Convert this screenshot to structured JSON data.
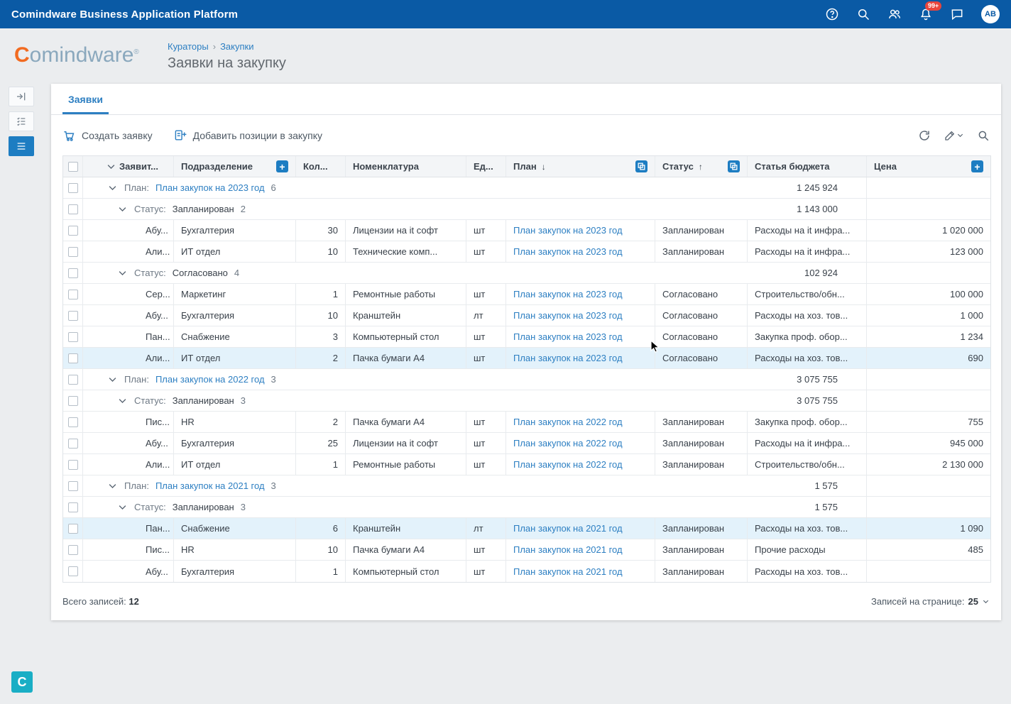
{
  "topbar": {
    "title": "Comindware Business Application Platform",
    "notification_count": "99+",
    "avatar_initials": "AB"
  },
  "header": {
    "logo_first": "C",
    "logo_rest": "omindware",
    "logo_mark": "®",
    "breadcrumb_1": "Кураторы",
    "breadcrumb_sep": "›",
    "breadcrumb_2": "Закупки",
    "page_title": "Заявки на закупку"
  },
  "sidebar": {
    "logo_letter": "C"
  },
  "tabs": {
    "requests": "Заявки"
  },
  "toolbar": {
    "create_request": "Создать заявку",
    "add_positions": "Добавить позиции в закупку"
  },
  "icons": {
    "plus": "+",
    "sort_desc": "↓",
    "sort_asc": "↑"
  },
  "table": {
    "columns": {
      "requester": "Заявит...",
      "department": "Подразделение",
      "qty": "Кол...",
      "nomenclature": "Номенклатура",
      "unit": "Ед...",
      "plan": "План",
      "status": "Статус",
      "budget": "Статья бюджета",
      "price": "Цена"
    },
    "rows": [
      {
        "type": "group",
        "level": 1,
        "label": "План:",
        "value": "План закупок на 2023 год",
        "link": true,
        "count": "6",
        "total": "1 245 924"
      },
      {
        "type": "group",
        "level": 2,
        "label": "Статус:",
        "value": "Запланирован",
        "link": false,
        "count": "2",
        "total": "1 143 000"
      },
      {
        "type": "data",
        "requester": "Абу...",
        "department": "Бухгалтерия",
        "qty": "30",
        "item": "Лицензии на it софт",
        "unit": "шт",
        "plan": "План закупок на 2023 год",
        "status": "Запланирован",
        "budget": "Расходы на it инфра...",
        "price": "1 020 000",
        "highlighted": false
      },
      {
        "type": "data",
        "requester": "Али...",
        "department": "ИТ отдел",
        "qty": "10",
        "item": "Технические комп...",
        "unit": "шт",
        "plan": "План закупок на 2023 год",
        "status": "Запланирован",
        "budget": "Расходы на it инфра...",
        "price": "123 000",
        "highlighted": false
      },
      {
        "type": "group",
        "level": 2,
        "label": "Статус:",
        "value": "Согласовано",
        "link": false,
        "count": "4",
        "total": "102 924"
      },
      {
        "type": "data",
        "requester": "Сер...",
        "department": "Маркетинг",
        "qty": "1",
        "item": "Ремонтные работы",
        "unit": "шт",
        "plan": "План закупок на 2023 год",
        "status": "Согласовано",
        "budget": "Строительство/обн...",
        "price": "100 000",
        "highlighted": false
      },
      {
        "type": "data",
        "requester": "Абу...",
        "department": "Бухгалтерия",
        "qty": "10",
        "item": "Кранштейн",
        "unit": "лт",
        "plan": "План закупок на 2023 год",
        "status": "Согласовано",
        "budget": "Расходы на хоз. тов...",
        "price": "1 000",
        "highlighted": false
      },
      {
        "type": "data",
        "requester": "Пан...",
        "department": "Снабжение",
        "qty": "3",
        "item": "Компьютерный стол",
        "unit": "шт",
        "plan": "План закупок на 2023 год",
        "status": "Согласовано",
        "budget": "Закупка проф. обор...",
        "price": "1 234",
        "highlighted": false
      },
      {
        "type": "data",
        "requester": "Али...",
        "department": "ИТ отдел",
        "qty": "2",
        "item": "Пачка бумаги А4",
        "unit": "шт",
        "plan": "План закупок на 2023 год",
        "status": "Согласовано",
        "budget": "Расходы на хоз. тов...",
        "price": "690",
        "highlighted": true
      },
      {
        "type": "group",
        "level": 1,
        "label": "План:",
        "value": "План закупок на 2022 год",
        "link": true,
        "count": "3",
        "total": "3 075 755"
      },
      {
        "type": "group",
        "level": 2,
        "label": "Статус:",
        "value": "Запланирован",
        "link": false,
        "count": "3",
        "total": "3 075 755"
      },
      {
        "type": "data",
        "requester": "Пис...",
        "department": "HR",
        "qty": "2",
        "item": "Пачка бумаги А4",
        "unit": "шт",
        "plan": "План закупок на 2022 год",
        "status": "Запланирован",
        "budget": "Закупка проф. обор...",
        "price": "755",
        "highlighted": false
      },
      {
        "type": "data",
        "requester": "Абу...",
        "department": "Бухгалтерия",
        "qty": "25",
        "item": "Лицензии на it софт",
        "unit": "шт",
        "plan": "План закупок на 2022 год",
        "status": "Запланирован",
        "budget": "Расходы на it инфра...",
        "price": "945 000",
        "highlighted": false
      },
      {
        "type": "data",
        "requester": "Али...",
        "department": "ИТ отдел",
        "qty": "1",
        "item": "Ремонтные работы",
        "unit": "шт",
        "plan": "План закупок на 2022 год",
        "status": "Запланирован",
        "budget": "Строительство/обн...",
        "price": "2 130 000",
        "highlighted": false
      },
      {
        "type": "group",
        "level": 1,
        "label": "План:",
        "value": "План закупок на 2021 год",
        "link": true,
        "count": "3",
        "total": "1 575"
      },
      {
        "type": "group",
        "level": 2,
        "label": "Статус:",
        "value": "Запланирован",
        "link": false,
        "count": "3",
        "total": "1 575"
      },
      {
        "type": "data",
        "requester": "Пан...",
        "department": "Снабжение",
        "qty": "6",
        "item": "Кранштейн",
        "unit": "лт",
        "plan": "План закупок на 2021 год",
        "status": "Запланирован",
        "budget": "Расходы на хоз. тов...",
        "price": "1 090",
        "highlighted": true
      },
      {
        "type": "data",
        "requester": "Пис...",
        "department": "HR",
        "qty": "10",
        "item": "Пачка бумаги А4",
        "unit": "шт",
        "plan": "План закупок на 2021 год",
        "status": "Запланирован",
        "budget": "Прочие расходы",
        "price": "485",
        "highlighted": false
      },
      {
        "type": "data",
        "requester": "Абу...",
        "department": "Бухгалтерия",
        "qty": "1",
        "item": "Компьютерный стол",
        "unit": "шт",
        "plan": "План закупок на 2021 год",
        "status": "Запланирован",
        "budget": "Расходы на хоз. тов...",
        "price": "",
        "highlighted": false
      }
    ]
  },
  "footer": {
    "total_label": "Всего записей:",
    "total_count": "12",
    "per_page_label": "Записей на странице:",
    "per_page_value": "25"
  }
}
